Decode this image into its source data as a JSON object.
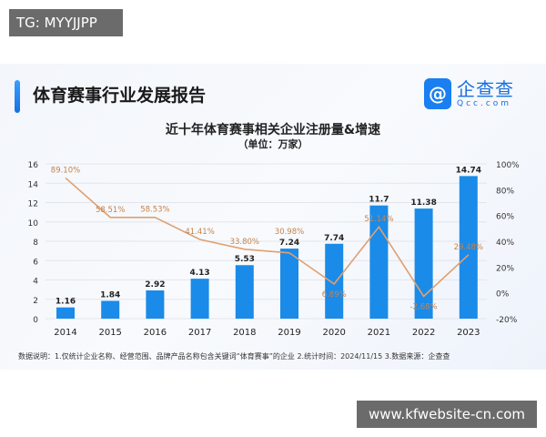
{
  "watermark_top": "TG: MYYJJPP",
  "watermark_bottom": "www.kfwebsite-cn.com",
  "header": {
    "title": "体育赛事行业发展报告",
    "logo_cn": "企查查",
    "logo_en": "Qcc.com"
  },
  "note": "数据说明：1.仅统计企业名称、经营范围、品牌产品名称包含关键词“体育赛事”的企业  2.统计时间：2024/11/15   3.数据来源：企查查",
  "colors": {
    "bar": "#1a8be8",
    "line": "#e0a070",
    "line_label": "#c8824a"
  },
  "chart_data": {
    "type": "bar+line",
    "title": "近十年体育赛事相关企业注册量&增速",
    "subtitle": "（单位：万家）",
    "categories": [
      "2014",
      "2015",
      "2016",
      "2017",
      "2018",
      "2019",
      "2020",
      "2021",
      "2022",
      "2023"
    ],
    "series": [
      {
        "type": "bar",
        "axis": "left",
        "values": [
          1.16,
          1.84,
          2.92,
          4.13,
          5.53,
          7.24,
          7.74,
          11.7,
          11.38,
          14.74
        ],
        "labels": [
          "1.16",
          "1.84",
          "2.92",
          "4.13",
          "5.53",
          "7.24",
          "7.74",
          "11.7",
          "11.38",
          "14.74"
        ]
      },
      {
        "type": "line",
        "axis": "right",
        "values": [
          89.1,
          58.51,
          58.53,
          41.41,
          33.8,
          30.98,
          6.89,
          51.14,
          -2.68,
          29.48
        ],
        "labels": [
          "89.10%",
          "58.51%",
          "58.53%",
          "41.41%",
          "33.80%",
          "30.98%",
          "6.89%",
          "51.14%",
          "-2.68%",
          "29.48%"
        ]
      }
    ],
    "y_left": {
      "range": [
        0,
        16
      ],
      "ticks": [
        "0",
        "2",
        "4",
        "6",
        "8",
        "10",
        "12",
        "14",
        "16"
      ]
    },
    "y_right": {
      "range": [
        -20,
        100
      ],
      "ticks": [
        "-20%",
        "0%",
        "20%",
        "40%",
        "60%",
        "80%",
        "100%"
      ]
    },
    "grid": true
  }
}
